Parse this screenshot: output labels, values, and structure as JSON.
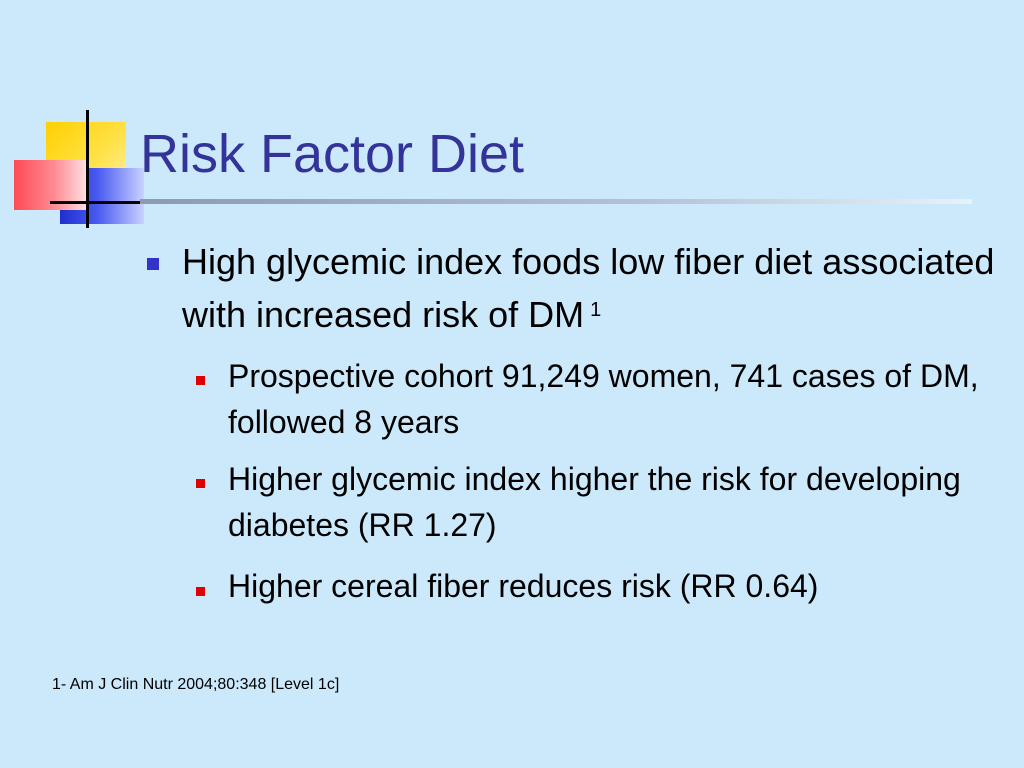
{
  "slide": {
    "title": "Risk Factor Diet",
    "bullets": [
      {
        "text": "High glycemic index foods low fiber diet associated with increased risk of DM",
        "superscript": "1",
        "sub_bullets": [
          "Prospective cohort 91,249 women, 741 cases of DM, followed 8 years",
          "Higher glycemic index higher the risk for developing diabetes (RR 1.27)",
          "Higher cereal fiber reduces risk (RR 0.64)"
        ]
      }
    ],
    "footnote": "1- Am J Clin Nutr 2004;80:348 [Level 1c]"
  },
  "colors": {
    "background": "#cce9fb",
    "title": "#333399",
    "bullet_level1": "#3333cc",
    "bullet_level2": "#e00000",
    "text": "#000000"
  }
}
